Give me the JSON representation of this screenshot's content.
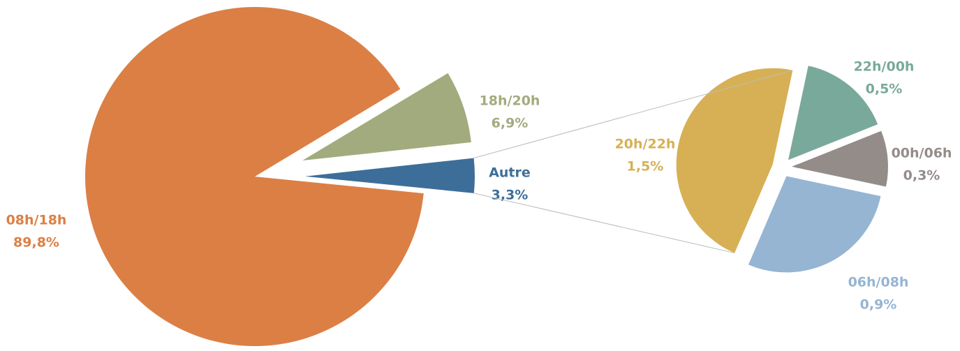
{
  "chart_data": [
    {
      "type": "pie",
      "categories": [
        "08h/18h",
        "18h/20h",
        "Autre"
      ],
      "values": [
        89.8,
        6.9,
        3.3
      ],
      "value_labels": [
        "89,8%",
        "6,9%",
        "3,3%"
      ],
      "colors": [
        "#dc7f45",
        "#a2ab7e",
        "#3d6e99"
      ]
    },
    {
      "type": "pie",
      "categories": [
        "22h/00h",
        "00h/06h",
        "06h/08h",
        "20h/22h"
      ],
      "values": [
        0.5,
        0.3,
        0.9,
        1.5
      ],
      "value_labels": [
        "0,5%",
        "0,3%",
        "0,9%",
        "1,5%"
      ],
      "colors": [
        "#79a99a",
        "#948c89",
        "#95b5d3",
        "#d7b055"
      ]
    }
  ]
}
